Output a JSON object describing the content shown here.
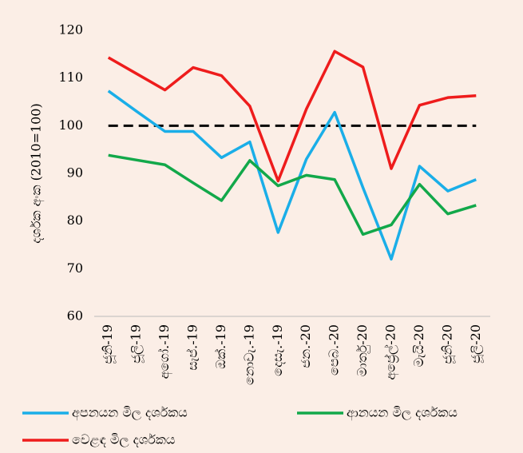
{
  "chart_data": {
    "type": "line",
    "y_label": "දර්ශක අංක (2010=100)",
    "categories": [
      "ජූනි-19",
      "ජූලි-19",
      "අගෝ.-19",
      "සැප්.-19",
      "ඔක්.-19",
      "නොවැ.-19",
      "දෙසැ.-19",
      "ජන.-20",
      "පෙබ.-20",
      "මාර්තු-20",
      "අප්‍රේල්-20",
      "මැයි-20",
      "ජූනි-20",
      "ජූලි-20"
    ],
    "series": [
      {
        "name": "අපනයන මිල දර්ශකය",
        "color": "#1aaee8",
        "values": [
          107.3,
          103,
          98.8,
          98.8,
          93.3,
          96.6,
          77.6,
          93,
          102.8,
          87,
          72,
          91.5,
          86.3,
          88.7
        ]
      },
      {
        "name": "ආනයන මිල දර්ශකය",
        "color": "#12a84a",
        "values": [
          93.8,
          92.8,
          91.8,
          88,
          84.3,
          92.7,
          87.4,
          89.6,
          88.7,
          77.2,
          79.2,
          87.7,
          81.5,
          83.3
        ]
      },
      {
        "name": "වෙළඳ මිල දර්ශකය",
        "color": "#ee1c1c",
        "values": [
          114.3,
          110.9,
          107.5,
          112.2,
          110.5,
          104.1,
          88.4,
          103.5,
          115.6,
          112.3,
          91,
          104.3,
          105.9,
          106.3
        ]
      }
    ],
    "reference_line": {
      "value": 100,
      "color": "#000000"
    },
    "ylim": [
      60,
      120
    ],
    "yticks": [
      60,
      70,
      80,
      90,
      100,
      110,
      120
    ],
    "grid": false
  }
}
